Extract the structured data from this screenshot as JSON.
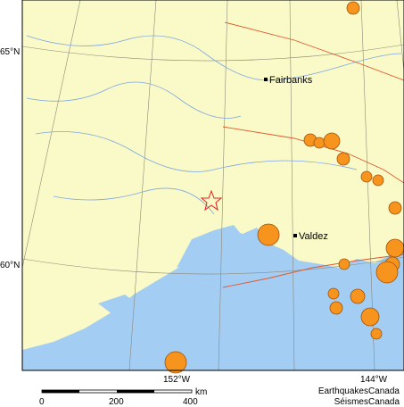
{
  "map": {
    "lat_labels": [
      "65°N",
      "60°N"
    ],
    "lon_labels": [
      "152°W",
      "144°W"
    ],
    "places": [
      "Fairbanks",
      "Valdez"
    ],
    "scale": {
      "ticks": [
        "0",
        "200",
        "400"
      ],
      "unit": "km"
    },
    "credits": [
      "EarthquakesCanada",
      "SéismesCanada"
    ]
  }
}
